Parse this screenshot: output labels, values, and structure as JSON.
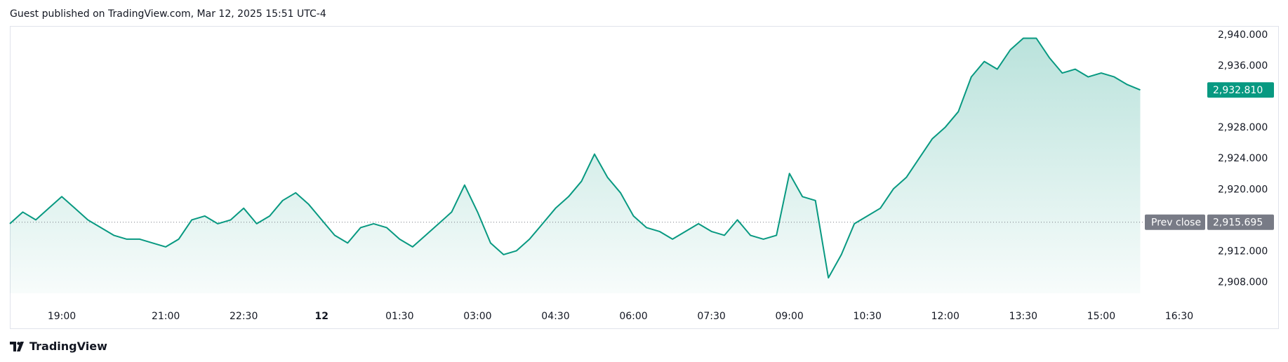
{
  "header": {
    "published_text": "Guest published on TradingView.com, Mar 12, 2025 15:51 UTC-4"
  },
  "footer": {
    "brand_text": "TradingView",
    "logo_icon": "tradingview-logo-icon"
  },
  "colors": {
    "line": "#089981",
    "fill_top": "#089981",
    "last_price_bg": "#089981",
    "prev_close_bg": "#787b86",
    "grid_border": "#e0e3eb"
  },
  "labels": {
    "prev_close": "Prev close",
    "last_price": "2,932.810",
    "prev_close_price": "2,915.695"
  },
  "chart_data": {
    "type": "area",
    "title": "",
    "xlabel": "",
    "ylabel": "",
    "ylim": [
      2906.5,
      2941.0
    ],
    "y_ticks": [
      2940,
      2936,
      2928,
      2924,
      2920,
      2912,
      2908
    ],
    "y_tick_labels": [
      "2,940.000",
      "2,936.000",
      "2,928.000",
      "2,924.000",
      "2,920.000",
      "2,912.000",
      "2,908.000"
    ],
    "x_ticks": [
      "19:00",
      "21:00",
      "22:30",
      "12",
      "01:30",
      "03:00",
      "04:30",
      "06:00",
      "07:30",
      "09:00",
      "10:30",
      "12:00",
      "13:30",
      "15:00",
      "16:30"
    ],
    "x_tick_bold": [
      false,
      false,
      false,
      true,
      false,
      false,
      false,
      false,
      false,
      false,
      false,
      false,
      false,
      false,
      false
    ],
    "last_price": 2932.81,
    "prev_close": 2915.695,
    "series": [
      {
        "x": [
          "18:00",
          "18:15",
          "18:30",
          "18:45",
          "19:00",
          "19:15",
          "19:30",
          "19:45",
          "20:00",
          "20:15",
          "20:30",
          "20:45",
          "21:00",
          "21:15",
          "21:30",
          "21:45",
          "22:00",
          "22:15",
          "22:30",
          "22:45",
          "23:00",
          "23:15",
          "23:30",
          "23:45",
          "00:00",
          "00:15",
          "00:30",
          "00:45",
          "01:00",
          "01:15",
          "01:30",
          "01:45",
          "02:00",
          "02:15",
          "02:30",
          "02:45",
          "03:00",
          "03:15",
          "03:30",
          "03:45",
          "04:00",
          "04:15",
          "04:30",
          "04:45",
          "05:00",
          "05:15",
          "05:30",
          "05:45",
          "06:00",
          "06:15",
          "06:30",
          "06:45",
          "07:00",
          "07:15",
          "07:30",
          "07:45",
          "08:00",
          "08:15",
          "08:30",
          "08:45",
          "09:00",
          "09:15",
          "09:30",
          "09:45",
          "10:00",
          "10:15",
          "10:30",
          "10:45",
          "11:00",
          "11:15",
          "11:30",
          "11:45",
          "12:00",
          "12:15",
          "12:30",
          "12:45",
          "13:00",
          "13:15",
          "13:30",
          "13:45",
          "14:00",
          "14:15",
          "14:30",
          "14:45",
          "15:00",
          "15:15",
          "15:30",
          "15:45"
        ],
        "values": [
          2915.5,
          2917.0,
          2916.0,
          2917.5,
          2919.0,
          2917.5,
          2916.0,
          2915.0,
          2914.0,
          2913.5,
          2913.5,
          2913.0,
          2912.5,
          2913.5,
          2916.0,
          2916.5,
          2915.5,
          2916.0,
          2917.5,
          2915.5,
          2916.5,
          2918.5,
          2919.5,
          2918.0,
          2916.0,
          2914.0,
          2913.0,
          2915.0,
          2915.5,
          2915.0,
          2913.5,
          2912.5,
          2914.0,
          2915.5,
          2917.0,
          2920.5,
          2917.0,
          2913.0,
          2911.5,
          2912.0,
          2913.5,
          2915.5,
          2917.5,
          2919.0,
          2921.0,
          2924.5,
          2921.5,
          2919.5,
          2916.5,
          2915.0,
          2914.5,
          2913.5,
          2914.5,
          2915.5,
          2914.5,
          2914.0,
          2916.0,
          2914.0,
          2913.5,
          2914.0,
          2922.0,
          2919.0,
          2918.5,
          2908.5,
          2911.5,
          2915.5,
          2916.5,
          2917.5,
          2920.0,
          2921.5,
          2924.0,
          2926.5,
          2928.0,
          2930.0,
          2934.5,
          2936.5,
          2935.5,
          2938.0,
          2939.5,
          2939.5,
          2937.0,
          2935.0,
          2935.5,
          2934.5,
          2935.0,
          2934.5,
          2933.5,
          2932.81
        ]
      }
    ]
  }
}
